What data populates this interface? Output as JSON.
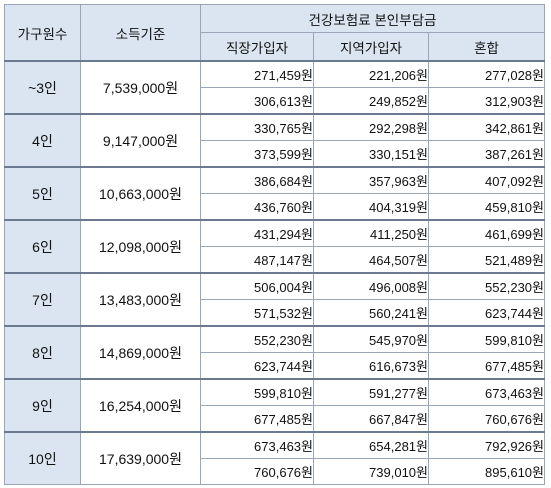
{
  "header": {
    "col_household": "가구원수",
    "col_income": "소득기준",
    "col_premium_group": "건강보험료 본인부담금",
    "col_employee": "직장가입자",
    "col_regional": "지역가입자",
    "col_mixed": "혼합"
  },
  "rows": [
    {
      "household": "~3인",
      "income": "7,539,000원",
      "values": [
        [
          "271,459원",
          "221,206원",
          "277,028원"
        ],
        [
          "306,613원",
          "249,852원",
          "312,903원"
        ]
      ]
    },
    {
      "household": "4인",
      "income": "9,147,000원",
      "values": [
        [
          "330,765원",
          "292,298원",
          "342,861원"
        ],
        [
          "373,599원",
          "330,151원",
          "387,261원"
        ]
      ]
    },
    {
      "household": "5인",
      "income": "10,663,000원",
      "values": [
        [
          "386,684원",
          "357,963원",
          "407,092원"
        ],
        [
          "436,760원",
          "404,319원",
          "459,810원"
        ]
      ]
    },
    {
      "household": "6인",
      "income": "12,098,000원",
      "values": [
        [
          "431,294원",
          "411,250원",
          "461,699원"
        ],
        [
          "487,147원",
          "464,507원",
          "521,489원"
        ]
      ]
    },
    {
      "household": "7인",
      "income": "13,483,000원",
      "values": [
        [
          "506,004원",
          "496,008원",
          "552,230원"
        ],
        [
          "571,532원",
          "560,241원",
          "623,744원"
        ]
      ]
    },
    {
      "household": "8인",
      "income": "14,869,000원",
      "values": [
        [
          "552,230원",
          "545,970원",
          "599,810원"
        ],
        [
          "623,744원",
          "616,673원",
          "677,485원"
        ]
      ]
    },
    {
      "household": "9인",
      "income": "16,254,000원",
      "values": [
        [
          "599,810원",
          "591,277원",
          "673,463원"
        ],
        [
          "677,485원",
          "667,847원",
          "760,676원"
        ]
      ]
    },
    {
      "household": "10인",
      "income": "17,639,000원",
      "values": [
        [
          "673,463원",
          "654,281원",
          "792,926원"
        ],
        [
          "760,676원",
          "739,010원",
          "895,610원"
        ]
      ]
    }
  ]
}
